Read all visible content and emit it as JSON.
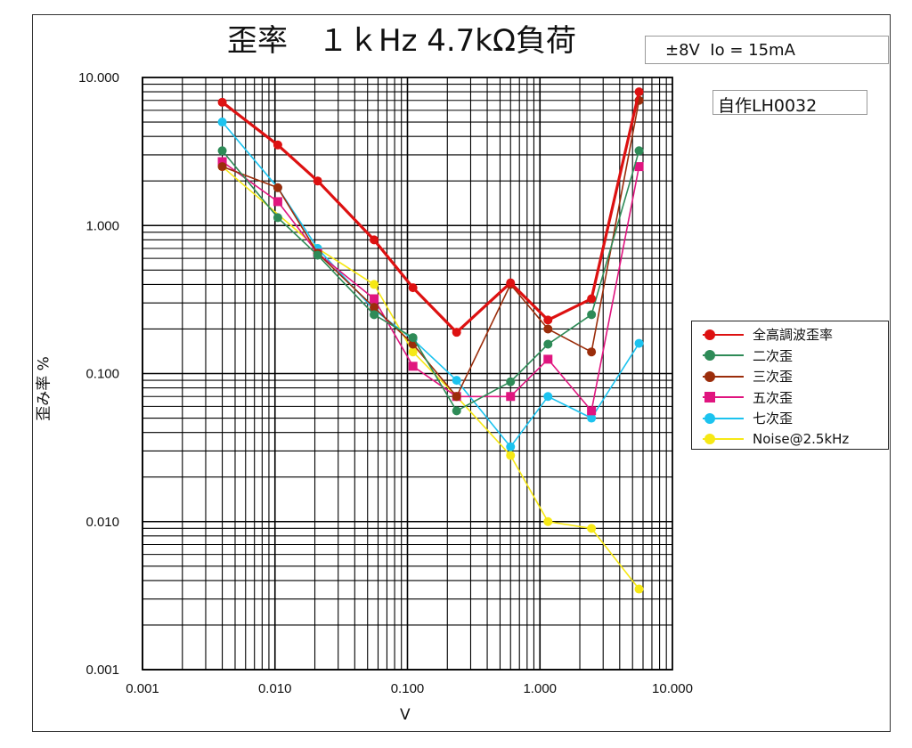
{
  "header": {
    "title": "歪率　１ｋHz 4.7kΩ負荷",
    "condition": "±8V  Io = 15mA",
    "maker": "自作LH0032"
  },
  "chart_data": {
    "type": "line",
    "title": "歪率　１ｋHz 4.7kΩ負荷",
    "xlabel": "V",
    "ylabel": "歪み率 %",
    "xscale": "log",
    "yscale": "log",
    "xlim": [
      0.001,
      10
    ],
    "ylim": [
      0.001,
      10
    ],
    "x_ticks": [
      "0.001",
      "0.010",
      "0.100",
      "1.000",
      "10.000"
    ],
    "y_ticks": [
      "10.000",
      "1.000",
      "0.100",
      "0.010",
      "0.001"
    ],
    "grid": true,
    "legend_position": "right",
    "series": [
      {
        "name": "全高調波歪率",
        "color": "#dd1111",
        "marker": "circle",
        "x": [
          0.004,
          0.0105,
          0.021,
          0.056,
          0.11,
          0.235,
          0.6,
          1.15,
          2.45,
          5.6
        ],
        "y": [
          6.8,
          3.5,
          2.0,
          0.8,
          0.38,
          0.19,
          0.41,
          0.23,
          0.32,
          8.0
        ]
      },
      {
        "name": "二次歪",
        "color": "#2e8b57",
        "marker": "circle",
        "x": [
          0.004,
          0.0105,
          0.021,
          0.056,
          0.11,
          0.235,
          0.6,
          1.15,
          2.45,
          5.6
        ],
        "y": [
          3.2,
          1.13,
          0.63,
          0.25,
          0.175,
          0.056,
          0.088,
          0.158,
          0.25,
          3.2
        ]
      },
      {
        "name": "三次歪",
        "color": "#9b2d0b",
        "marker": "circle",
        "x": [
          0.004,
          0.0105,
          0.021,
          0.056,
          0.11,
          0.235,
          0.6,
          1.15,
          2.45,
          5.6
        ],
        "y": [
          2.5,
          1.8,
          0.65,
          0.28,
          0.158,
          0.07,
          0.4,
          0.2,
          0.14,
          7.0
        ]
      },
      {
        "name": "五次歪",
        "color": "#e0157f",
        "marker": "square",
        "x": [
          0.004,
          0.0105,
          0.021,
          0.056,
          0.11,
          0.235,
          0.6,
          1.15,
          2.45,
          5.6
        ],
        "y": [
          2.7,
          1.45,
          0.65,
          0.32,
          0.112,
          0.07,
          0.07,
          0.125,
          0.056,
          2.5
        ]
      },
      {
        "name": "七次歪",
        "color": "#1cc3ef",
        "marker": "circle",
        "x": [
          0.004,
          0.0105,
          0.021,
          0.056,
          0.11,
          0.235,
          0.6,
          1.15,
          2.45,
          5.6
        ],
        "y": [
          5.0,
          1.8,
          0.7,
          0.27,
          0.17,
          0.09,
          0.032,
          0.07,
          0.05,
          0.16
        ]
      },
      {
        "name": "Noise@2.5kHz",
        "color": "#f6e815",
        "marker": "circle",
        "x": [
          0.004,
          0.021,
          0.056,
          0.11,
          0.235,
          0.6,
          1.15,
          2.45,
          5.6
        ],
        "y": [
          2.5,
          0.7,
          0.4,
          0.14,
          0.07,
          0.028,
          0.01,
          0.009,
          0.0035
        ]
      }
    ]
  }
}
